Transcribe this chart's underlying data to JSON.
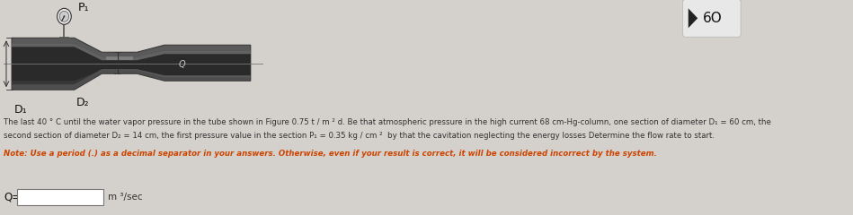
{
  "bg_color": "#d4d0cb",
  "label_P1": "P₁",
  "label_D1": "D₁",
  "label_D2": "D₂",
  "label_Q": "Q=",
  "label_units": "m ³/sec",
  "line1": "The last 40 ° C until the water vapor pressure in the tube shown in Figure 0.75 t / m ² d. Be that atmospheric pressure in the high current 68 cm-Hg-column, one section of diameter D₁ = 60 cm, the",
  "line2": "second section of diameter D₂ = 14 cm, the first pressure value in the section P₁ = 0.35 kg / cm ²  by that the cavitation neglecting the energy losses Determine the flow rate to start.",
  "note_line": "Note: Use a period (.) as a decimal separator in your answers. Otherwise, even if your result is correct, it will be considered incorrect by the system.",
  "number_badge": "6O",
  "fig_width": 9.49,
  "fig_height": 2.4,
  "text_color": "#333333",
  "note_color": "#cc4400",
  "pipe_outer": "#555555",
  "pipe_inner": "#3a3a3a",
  "pipe_light": "#888888",
  "pipe_dark": "#222222"
}
